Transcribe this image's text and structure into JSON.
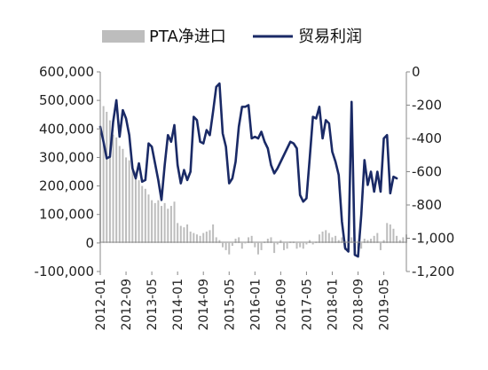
{
  "chart_data": {
    "type": "bar+line",
    "title": "",
    "x_range": [
      "2012-01",
      "2019-12"
    ],
    "x_ticks": [
      "2012-01",
      "2012-09",
      "2013-05",
      "2014-01",
      "2014-09",
      "2015-05",
      "2016-01",
      "2016-09",
      "2017-05",
      "2018-01",
      "2018-09",
      "2019-05"
    ],
    "y_left": {
      "ylim": [
        -100000,
        600000
      ],
      "ticks": [
        "600,000",
        "500,000",
        "400,000",
        "300,000",
        "200,000",
        "100,000",
        "0",
        "-100,000"
      ],
      "tick_values": [
        600000,
        500000,
        400000,
        300000,
        200000,
        100000,
        0,
        -100000
      ]
    },
    "y_right": {
      "ylim": [
        -1200,
        0
      ],
      "ticks": [
        "0",
        "-200",
        "-400",
        "-600",
        "-800",
        "-1,000",
        "-1,200"
      ],
      "tick_values": [
        0,
        -200,
        -400,
        -600,
        -800,
        -1000,
        -1200
      ]
    },
    "legend": {
      "placement": "top",
      "entries": [
        "PTA净进口",
        "贸易利润"
      ]
    },
    "grid": false,
    "colors": {
      "bar": "#bdbdbd",
      "line": "#1a2a66"
    },
    "series": [
      {
        "name": "PTA净进口",
        "type": "bar",
        "axis": "left",
        "values": [
          410000,
          480000,
          460000,
          430000,
          380000,
          370000,
          340000,
          330000,
          300000,
          290000,
          270000,
          250000,
          220000,
          200000,
          190000,
          170000,
          150000,
          140000,
          150000,
          130000,
          140000,
          120000,
          130000,
          145000,
          70000,
          60000,
          55000,
          65000,
          40000,
          35000,
          30000,
          25000,
          35000,
          40000,
          45000,
          65000,
          20000,
          10000,
          -15000,
          -25000,
          -40000,
          -10000,
          15000,
          20000,
          -20000,
          0,
          20000,
          25000,
          -15000,
          -40000,
          -25000,
          5000,
          15000,
          20000,
          -35000,
          -5000,
          10000,
          -25000,
          -20000,
          5000,
          5000,
          -20000,
          -15000,
          -20000,
          -5000,
          10000,
          -5000,
          5000,
          30000,
          40000,
          45000,
          35000,
          20000,
          25000,
          10000,
          20000,
          -25000,
          15000,
          20000,
          5000,
          -20000,
          -20000,
          15000,
          10000,
          15000,
          25000,
          35000,
          -25000,
          10000,
          70000,
          65000,
          50000,
          25000,
          10000,
          20000,
          30000
        ],
        "start": "2012-01"
      },
      {
        "name": "贸易利润",
        "type": "line",
        "axis": "right",
        "points": [
          {
            "x": "2012-01",
            "y": -330
          },
          {
            "x": "2012-02",
            "y": -420
          },
          {
            "x": "2012-03",
            "y": -520
          },
          {
            "x": "2012-04",
            "y": -510
          },
          {
            "x": "2012-05",
            "y": -300
          },
          {
            "x": "2012-06",
            "y": -170
          },
          {
            "x": "2012-07",
            "y": -390
          },
          {
            "x": "2012-08",
            "y": -230
          },
          {
            "x": "2012-09",
            "y": -280
          },
          {
            "x": "2012-10",
            "y": -380
          },
          {
            "x": "2012-11",
            "y": -580
          },
          {
            "x": "2012-12",
            "y": -640
          },
          {
            "x": "2013-01",
            "y": -550
          },
          {
            "x": "2013-02",
            "y": -660
          },
          {
            "x": "2013-03",
            "y": -650
          },
          {
            "x": "2013-04",
            "y": -430
          },
          {
            "x": "2013-05",
            "y": -450
          },
          {
            "x": "2013-06",
            "y": -550
          },
          {
            "x": "2013-07",
            "y": -650
          },
          {
            "x": "2013-08",
            "y": -770
          },
          {
            "x": "2013-09",
            "y": -560
          },
          {
            "x": "2013-10",
            "y": -380
          },
          {
            "x": "2013-11",
            "y": -420
          },
          {
            "x": "2013-12",
            "y": -320
          },
          {
            "x": "2014-01",
            "y": -560
          },
          {
            "x": "2014-02",
            "y": -670
          },
          {
            "x": "2014-03",
            "y": -590
          },
          {
            "x": "2014-04",
            "y": -650
          },
          {
            "x": "2014-05",
            "y": -600
          },
          {
            "x": "2014-06",
            "y": -270
          },
          {
            "x": "2014-07",
            "y": -290
          },
          {
            "x": "2014-08",
            "y": -420
          },
          {
            "x": "2014-09",
            "y": -430
          },
          {
            "x": "2014-10",
            "y": -350
          },
          {
            "x": "2014-11",
            "y": -380
          },
          {
            "x": "2014-12",
            "y": -240
          },
          {
            "x": "2015-01",
            "y": -90
          },
          {
            "x": "2015-02",
            "y": -70
          },
          {
            "x": "2015-03",
            "y": -370
          },
          {
            "x": "2015-04",
            "y": -450
          },
          {
            "x": "2015-05",
            "y": -670
          },
          {
            "x": "2015-06",
            "y": -640
          },
          {
            "x": "2015-07",
            "y": -540
          },
          {
            "x": "2015-08",
            "y": -330
          },
          {
            "x": "2015-09",
            "y": -210
          },
          {
            "x": "2015-10",
            "y": -210
          },
          {
            "x": "2015-11",
            "y": -200
          },
          {
            "x": "2015-12",
            "y": -400
          },
          {
            "x": "2016-01",
            "y": -390
          },
          {
            "x": "2016-02",
            "y": -400
          },
          {
            "x": "2016-03",
            "y": -360
          },
          {
            "x": "2016-04",
            "y": -420
          },
          {
            "x": "2016-05",
            "y": -460
          },
          {
            "x": "2016-06",
            "y": -560
          },
          {
            "x": "2016-07",
            "y": -610
          },
          {
            "x": "2016-08",
            "y": -580
          },
          {
            "x": "2016-12",
            "y": -420
          },
          {
            "x": "2017-01",
            "y": -430
          },
          {
            "x": "2017-02",
            "y": -460
          },
          {
            "x": "2017-03",
            "y": -740
          },
          {
            "x": "2017-04",
            "y": -780
          },
          {
            "x": "2017-05",
            "y": -760
          },
          {
            "x": "2017-06",
            "y": -520
          },
          {
            "x": "2017-07",
            "y": -270
          },
          {
            "x": "2017-08",
            "y": -280
          },
          {
            "x": "2017-09",
            "y": -210
          },
          {
            "x": "2017-10",
            "y": -400
          },
          {
            "x": "2017-11",
            "y": -290
          },
          {
            "x": "2017-12",
            "y": -310
          },
          {
            "x": "2018-01",
            "y": -480
          },
          {
            "x": "2018-02",
            "y": -540
          },
          {
            "x": "2018-03",
            "y": -620
          },
          {
            "x": "2018-04",
            "y": -900
          },
          {
            "x": "2018-05",
            "y": -1060
          },
          {
            "x": "2018-06",
            "y": -1080
          },
          {
            "x": "2018-07",
            "y": -180
          },
          {
            "x": "2018-08",
            "y": -1100
          },
          {
            "x": "2018-09",
            "y": -1110
          },
          {
            "x": "2018-10",
            "y": -860
          },
          {
            "x": "2018-11",
            "y": -530
          },
          {
            "x": "2018-12",
            "y": -680
          },
          {
            "x": "2019-01",
            "y": -600
          },
          {
            "x": "2019-02",
            "y": -720
          },
          {
            "x": "2019-03",
            "y": -600
          },
          {
            "x": "2019-04",
            "y": -720
          },
          {
            "x": "2019-05",
            "y": -400
          },
          {
            "x": "2019-06",
            "y": -380
          },
          {
            "x": "2019-07",
            "y": -730
          },
          {
            "x": "2019-08",
            "y": -630
          },
          {
            "x": "2019-09",
            "y": -640
          }
        ]
      }
    ]
  }
}
